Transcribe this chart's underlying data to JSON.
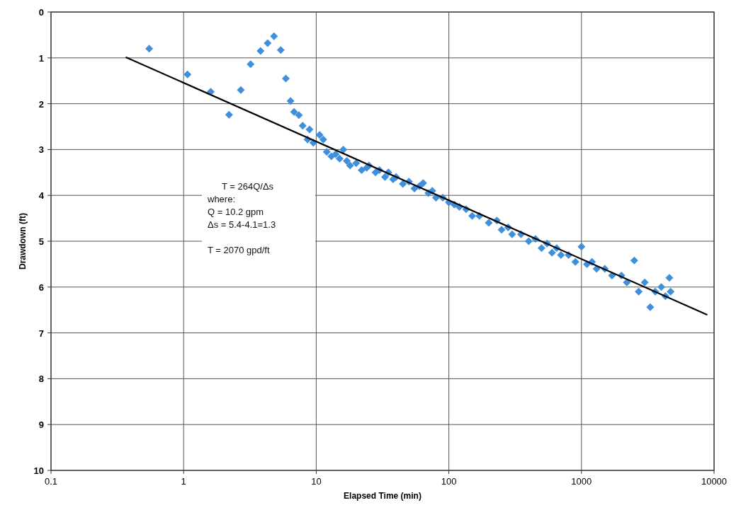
{
  "chart_data": {
    "type": "scatter",
    "xlabel": "Elapsed Time (min)",
    "ylabel": "Drawdown (ft)",
    "log": "x",
    "grid": true,
    "xlim": [
      0.1,
      10000
    ],
    "xticks": [
      0.1,
      1,
      10,
      100,
      1000,
      10000
    ],
    "ylim": [
      10,
      0
    ],
    "yticks": [
      0,
      1,
      2,
      3,
      4,
      5,
      6,
      7,
      8,
      9,
      10
    ],
    "annotations": [
      "T = 264Q/Δs",
      "where:",
      "Q = 10.2 gpm",
      "Δs = 5.4-4.1=1.3",
      "T = 2070 gpd/ft"
    ],
    "series": [
      {
        "color": "#3f8fdc",
        "marker": "diamond",
        "x": [
          0.55,
          1.07,
          1.6,
          2.2,
          2.7,
          3.2,
          3.8,
          4.3,
          4.8,
          5.4,
          5.9,
          6.4,
          6.8,
          7.4,
          7.9,
          8.6,
          8.9,
          9.5,
          10.6,
          11.3,
          12,
          13,
          14,
          15,
          16,
          17,
          18,
          20,
          22,
          24,
          25,
          28,
          30,
          33,
          35,
          38,
          40,
          45,
          50,
          55,
          60,
          64,
          70,
          75,
          80,
          90,
          100,
          110,
          120,
          135,
          150,
          170,
          200,
          230,
          250,
          280,
          300,
          350,
          400,
          450,
          500,
          550,
          600,
          650,
          700,
          800,
          900,
          1000,
          1100,
          1200,
          1300,
          1500,
          1700,
          2000,
          2200,
          2500,
          2700,
          3000,
          3300,
          3600,
          4000,
          4300,
          4600,
          4700
        ],
        "values": [
          0.8,
          1.36,
          1.74,
          2.24,
          1.7,
          1.14,
          0.85,
          0.68,
          0.53,
          0.83,
          1.45,
          1.94,
          2.18,
          2.25,
          2.48,
          2.78,
          2.56,
          2.85,
          2.68,
          2.78,
          3.05,
          3.15,
          3.1,
          3.2,
          3.0,
          3.25,
          3.35,
          3.3,
          3.45,
          3.4,
          3.35,
          3.5,
          3.45,
          3.6,
          3.5,
          3.65,
          3.6,
          3.75,
          3.7,
          3.85,
          3.8,
          3.73,
          3.95,
          3.9,
          4.05,
          4.05,
          4.15,
          4.2,
          4.25,
          4.3,
          4.45,
          4.45,
          4.6,
          4.55,
          4.75,
          4.7,
          4.85,
          4.85,
          5.0,
          4.95,
          5.15,
          5.05,
          5.25,
          5.15,
          5.3,
          5.3,
          5.45,
          5.12,
          5.5,
          5.45,
          5.6,
          5.6,
          5.75,
          5.75,
          5.9,
          5.42,
          6.1,
          5.9,
          6.44,
          6.1,
          6.0,
          6.2,
          5.8,
          6.1
        ]
      },
      {
        "type": "line",
        "marker": "none",
        "color": "#000000",
        "x": [
          0.37,
          8800
        ],
        "values": [
          0.99,
          6.6
        ]
      }
    ]
  }
}
